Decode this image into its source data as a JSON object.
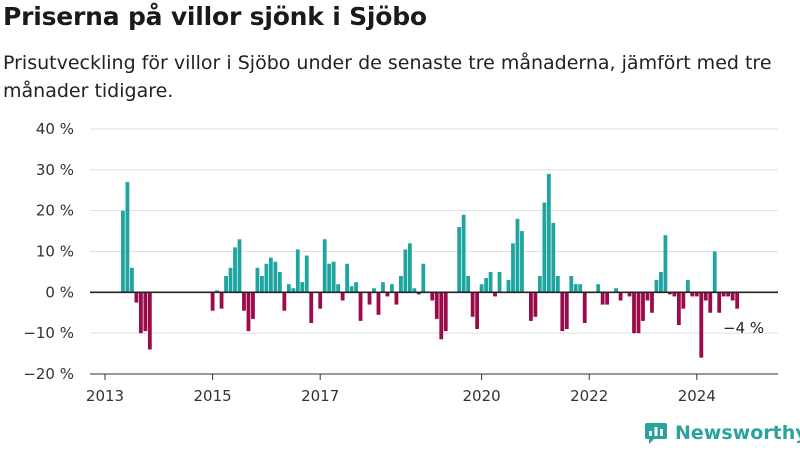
{
  "title": "Priserna på villor sjönk i Sjöbo",
  "subtitle": "Prisutveckling för villor i Sjöbo under de senaste tre månaderna, jämfört med tre månader tidigare.",
  "brand": {
    "name": "Newsworthy",
    "icon": "newsworthy-logo-icon"
  },
  "colors": {
    "positive": "#1fa5a0",
    "negative": "#9b0b4b",
    "brand": "#2aa39c"
  },
  "chart_data": {
    "type": "bar",
    "title": "Priserna på villor sjönk i Sjöbo",
    "subtitle": "Prisutveckling för villor i Sjöbo under de senaste tre månaderna, jämfört med tre månader tidigare.",
    "xlabel": "",
    "ylabel": "",
    "unit": "%",
    "ylim": [
      -20,
      40
    ],
    "yticks": [
      40,
      30,
      20,
      10,
      0,
      -10,
      -20
    ],
    "ytick_labels": [
      "40 %",
      "30 %",
      "20 %",
      "10 %",
      "0 %",
      "−10 %",
      "−20 %"
    ],
    "xticks": [
      "2013",
      "2015",
      "2017",
      "2020",
      "2022",
      "2024"
    ],
    "grid": true,
    "annotation": "−4 %",
    "x_start": "2013-05",
    "interval": "month",
    "values": [
      20,
      27,
      6,
      -2.5,
      -10,
      -9.5,
      -14,
      null,
      null,
      null,
      null,
      null,
      null,
      null,
      null,
      null,
      null,
      null,
      null,
      null,
      -4.5,
      0.5,
      -4,
      4,
      6,
      11,
      13,
      -4.5,
      -9.5,
      -6.5,
      6,
      4,
      7,
      8.5,
      7.5,
      5,
      -4.5,
      2,
      1,
      10.5,
      2.5,
      9,
      -7.5,
      0,
      -4,
      13,
      7,
      7.5,
      2,
      -2,
      7,
      1.5,
      2.5,
      -7,
      0,
      -3,
      1,
      -5.5,
      2.5,
      -1,
      2,
      -3,
      4,
      10.5,
      12,
      1,
      -0.5,
      7,
      0,
      -2,
      -6.5,
      -11.5,
      -9.5,
      0,
      0,
      16,
      19,
      4,
      -6,
      -9,
      2,
      3.5,
      5,
      -1,
      5,
      0,
      3,
      12,
      18,
      15,
      0,
      -7,
      -6,
      4,
      22,
      29,
      17,
      4,
      -9.5,
      -9,
      4,
      2,
      2,
      -7.5,
      0,
      0,
      2,
      -3,
      -3,
      0,
      1,
      -2,
      0,
      -1,
      -10,
      -10,
      -7,
      -2,
      -5,
      3,
      5,
      14,
      -0.5,
      -1,
      -8,
      -4,
      3,
      -1,
      -1,
      -16,
      -2,
      -5,
      10,
      -5,
      -1,
      -1,
      -2,
      -4
    ]
  }
}
